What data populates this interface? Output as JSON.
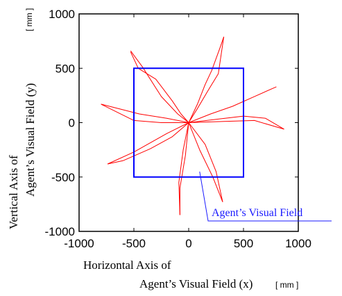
{
  "chart_data": {
    "type": "line",
    "xlabel_line1": "Horizontal Axis of",
    "xlabel_line2": "Agent’s Visual Field (x)",
    "xlabel_unit": "[ mm ]",
    "ylabel_line1": "Vertical Axis of",
    "ylabel_line2": "Agent’s Visual Field (y)",
    "ylabel_unit": "[ mm ]",
    "xlim": [
      -1000,
      1000
    ],
    "ylim": [
      -1000,
      1000
    ],
    "xticks": [
      "-1000",
      "-500",
      "0",
      "500",
      "1000"
    ],
    "yticks": [
      "1000",
      "500",
      "0",
      "-500",
      "-1000"
    ],
    "grid": false,
    "colors": {
      "trajectory": "#ff0000",
      "visual_field": "#0000ff",
      "annotation": "#1a1aff"
    },
    "visual_field": {
      "label": "Agent’s Visual Field",
      "x": [
        -500,
        500
      ],
      "y": [
        -500,
        500
      ]
    },
    "series": [
      {
        "points": [
          [
            0,
            0
          ],
          [
            -100,
            80
          ],
          [
            -250,
            240
          ],
          [
            -420,
            510
          ],
          [
            -530,
            660
          ]
        ]
      },
      {
        "points": [
          [
            0,
            0
          ],
          [
            -70,
            80
          ],
          [
            -150,
            200
          ],
          [
            -300,
            400
          ],
          [
            -460,
            500
          ],
          [
            -530,
            650
          ]
        ]
      },
      {
        "points": [
          [
            0,
            0
          ],
          [
            80,
            170
          ],
          [
            150,
            350
          ],
          [
            210,
            480
          ],
          [
            290,
            700
          ],
          [
            320,
            790
          ]
        ]
      },
      {
        "points": [
          [
            0,
            0
          ],
          [
            80,
            130
          ],
          [
            180,
            300
          ],
          [
            270,
            450
          ],
          [
            320,
            790
          ]
        ]
      },
      {
        "points": [
          [
            0,
            0
          ],
          [
            200,
            80
          ],
          [
            400,
            150
          ],
          [
            600,
            240
          ],
          [
            800,
            330
          ]
        ]
      },
      {
        "points": [
          [
            0,
            0
          ],
          [
            250,
            30
          ],
          [
            500,
            60
          ],
          [
            700,
            40
          ],
          [
            870,
            -60
          ]
        ]
      },
      {
        "points": [
          [
            0,
            0
          ],
          [
            300,
            10
          ],
          [
            600,
            20
          ],
          [
            870,
            -60
          ]
        ]
      },
      {
        "points": [
          [
            0,
            0
          ],
          [
            -200,
            40
          ],
          [
            -450,
            80
          ],
          [
            -800,
            170
          ]
        ]
      },
      {
        "points": [
          [
            0,
            0
          ],
          [
            -250,
            0
          ],
          [
            -500,
            20
          ],
          [
            -800,
            170
          ]
        ]
      },
      {
        "points": [
          [
            0,
            0
          ],
          [
            -200,
            -100
          ],
          [
            -500,
            -270
          ],
          [
            -740,
            -380
          ]
        ]
      },
      {
        "points": [
          [
            0,
            0
          ],
          [
            -150,
            -130
          ],
          [
            -350,
            -240
          ],
          [
            -600,
            -350
          ],
          [
            -740,
            -380
          ]
        ]
      },
      {
        "points": [
          [
            0,
            0
          ],
          [
            -50,
            -250
          ],
          [
            -90,
            -550
          ],
          [
            -80,
            -850
          ]
        ]
      },
      {
        "points": [
          [
            0,
            0
          ],
          [
            -30,
            -300
          ],
          [
            -80,
            -600
          ],
          [
            -80,
            -850
          ]
        ]
      },
      {
        "points": [
          [
            0,
            0
          ],
          [
            100,
            -250
          ],
          [
            220,
            -500
          ],
          [
            310,
            -730
          ]
        ]
      },
      {
        "points": [
          [
            0,
            0
          ],
          [
            150,
            -200
          ],
          [
            250,
            -450
          ],
          [
            310,
            -730
          ]
        ]
      }
    ]
  }
}
